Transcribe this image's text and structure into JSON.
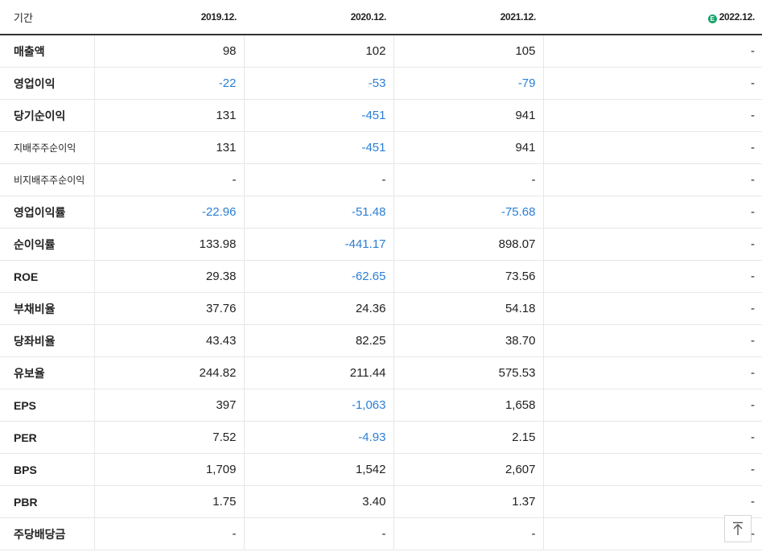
{
  "header": {
    "period_label": "기간",
    "years": [
      "2019.12.",
      "2020.12.",
      "2021.12."
    ],
    "estimate_year": "2022.12.",
    "estimate_badge": "E"
  },
  "rows": [
    {
      "label": "매출액",
      "values": [
        "98",
        "102",
        "105",
        "-"
      ]
    },
    {
      "label": "영업이익",
      "values": [
        "-22",
        "-53",
        "-79",
        "-"
      ]
    },
    {
      "label": "당기순이익",
      "values": [
        "131",
        "-451",
        "941",
        "-"
      ]
    },
    {
      "label": "지배주주순이익",
      "values": [
        "131",
        "-451",
        "941",
        "-"
      ]
    },
    {
      "label": "비지배주주순이익",
      "values": [
        "-",
        "-",
        "-",
        "-"
      ]
    },
    {
      "label": "영업이익률",
      "values": [
        "-22.96",
        "-51.48",
        "-75.68",
        "-"
      ]
    },
    {
      "label": "순이익률",
      "values": [
        "133.98",
        "-441.17",
        "898.07",
        "-"
      ]
    },
    {
      "label": "ROE",
      "values": [
        "29.38",
        "-62.65",
        "73.56",
        "-"
      ]
    },
    {
      "label": "부채비율",
      "values": [
        "37.76",
        "24.36",
        "54.18",
        "-"
      ]
    },
    {
      "label": "당좌비율",
      "values": [
        "43.43",
        "82.25",
        "38.70",
        "-"
      ]
    },
    {
      "label": "유보율",
      "values": [
        "244.82",
        "211.44",
        "575.53",
        "-"
      ]
    },
    {
      "label": "EPS",
      "values": [
        "397",
        "-1,063",
        "1,658",
        "-"
      ]
    },
    {
      "label": "PER",
      "values": [
        "7.52",
        "-4.93",
        "2.15",
        "-"
      ]
    },
    {
      "label": "BPS",
      "values": [
        "1,709",
        "1,542",
        "2,607",
        "-"
      ]
    },
    {
      "label": "PBR",
      "values": [
        "1.75",
        "3.40",
        "1.37",
        "-"
      ]
    },
    {
      "label": "주당배당금",
      "values": [
        "-",
        "-",
        "-",
        "-"
      ]
    }
  ],
  "colors": {
    "negative": "#2a7fd4",
    "estimate_badge": "#1aa36b"
  },
  "scroll_top_icon": "arrow-up-to-top-icon"
}
